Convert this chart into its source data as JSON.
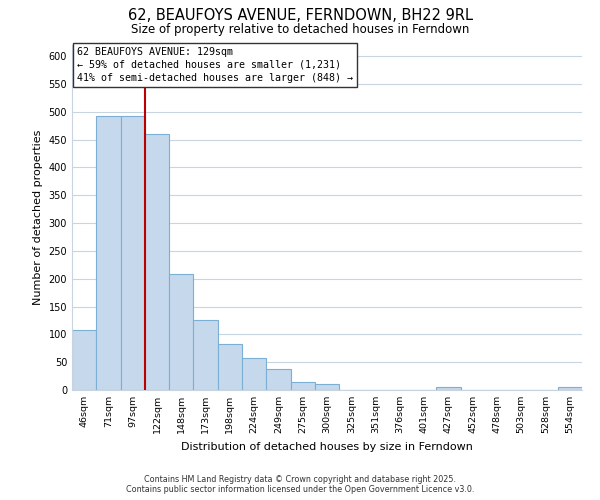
{
  "title": "62, BEAUFOYS AVENUE, FERNDOWN, BH22 9RL",
  "subtitle": "Size of property relative to detached houses in Ferndown",
  "xlabel": "Distribution of detached houses by size in Ferndown",
  "ylabel": "Number of detached properties",
  "bar_color": "#c6d9ec",
  "bar_edge_color": "#7bafd4",
  "background_color": "#ffffff",
  "grid_color": "#c8d4e0",
  "vline_color": "#bb0000",
  "annotation_title": "62 BEAUFOYS AVENUE: 129sqm",
  "annotation_line1": "← 59% of detached houses are smaller (1,231)",
  "annotation_line2": "41% of semi-detached houses are larger (848) →",
  "categories": [
    "46sqm",
    "71sqm",
    "97sqm",
    "122sqm",
    "148sqm",
    "173sqm",
    "198sqm",
    "224sqm",
    "249sqm",
    "275sqm",
    "300sqm",
    "325sqm",
    "351sqm",
    "376sqm",
    "401sqm",
    "427sqm",
    "452sqm",
    "478sqm",
    "503sqm",
    "528sqm",
    "554sqm"
  ],
  "values": [
    107,
    493,
    493,
    460,
    208,
    125,
    83,
    58,
    37,
    15,
    11,
    0,
    0,
    0,
    0,
    5,
    0,
    0,
    0,
    0,
    5
  ],
  "vline_x": 3,
  "ylim": [
    0,
    620
  ],
  "yticks": [
    0,
    50,
    100,
    150,
    200,
    250,
    300,
    350,
    400,
    450,
    500,
    550,
    600
  ],
  "footnote1": "Contains HM Land Registry data © Crown copyright and database right 2025.",
  "footnote2": "Contains public sector information licensed under the Open Government Licence v3.0."
}
